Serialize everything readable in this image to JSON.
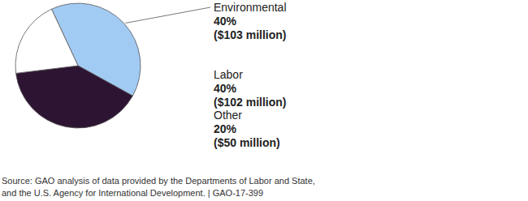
{
  "chart_data": {
    "type": "pie",
    "categories": [
      "Environmental",
      "Labor",
      "Other"
    ],
    "values": [
      40,
      40,
      20
    ],
    "value_labels": [
      "40%",
      "40%",
      "20%"
    ],
    "amounts": [
      103,
      102,
      50
    ],
    "amount_labels": [
      "($103 million)",
      "($102 million)",
      "($50 million)"
    ],
    "colors": [
      "#a2cbf4",
      "#2e1433",
      "#ffffff"
    ],
    "data_labels": true,
    "source": [
      "Source: GAO analysis of data provided by the Departments of Labor and State,",
      "and the U.S. Agency for International Development.  |  GAO-17-399"
    ]
  }
}
